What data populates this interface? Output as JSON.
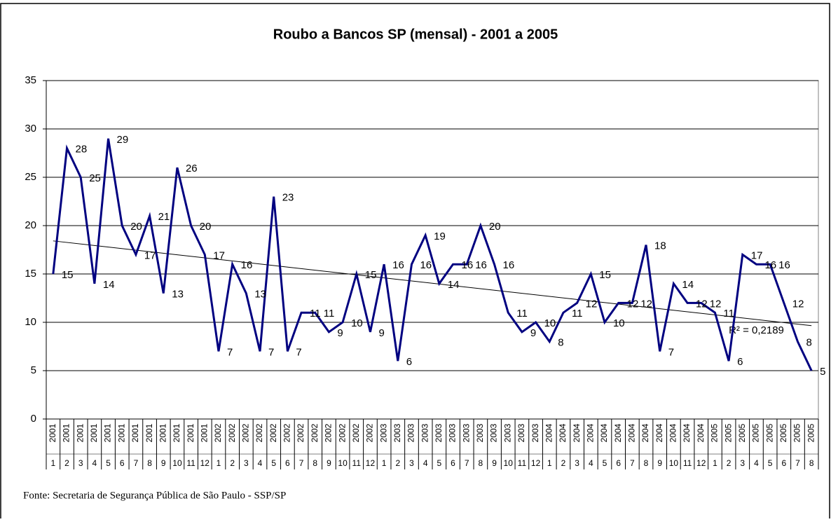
{
  "chart_data": {
    "type": "line",
    "title": "Roubo a Bancos SP (mensal) - 2001 a 2005",
    "source": "Fonte: Secretaria de Segurança Pública de São Paulo - SSP/SP",
    "categories": [
      [
        "2001",
        "1"
      ],
      [
        "2001",
        "2"
      ],
      [
        "2001",
        "3"
      ],
      [
        "2001",
        "4"
      ],
      [
        "2001",
        "5"
      ],
      [
        "2001",
        "6"
      ],
      [
        "2001",
        "7"
      ],
      [
        "2001",
        "8"
      ],
      [
        "2001",
        "9"
      ],
      [
        "2001",
        "10"
      ],
      [
        "2001",
        "11"
      ],
      [
        "2001",
        "12"
      ],
      [
        "2002",
        "1"
      ],
      [
        "2002",
        "2"
      ],
      [
        "2002",
        "3"
      ],
      [
        "2002",
        "4"
      ],
      [
        "2002",
        "5"
      ],
      [
        "2002",
        "6"
      ],
      [
        "2002",
        "7"
      ],
      [
        "2002",
        "8"
      ],
      [
        "2002",
        "9"
      ],
      [
        "2002",
        "10"
      ],
      [
        "2002",
        "11"
      ],
      [
        "2002",
        "12"
      ],
      [
        "2003",
        "1"
      ],
      [
        "2003",
        "2"
      ],
      [
        "2003",
        "3"
      ],
      [
        "2003",
        "4"
      ],
      [
        "2003",
        "5"
      ],
      [
        "2003",
        "6"
      ],
      [
        "2003",
        "7"
      ],
      [
        "2003",
        "8"
      ],
      [
        "2003",
        "9"
      ],
      [
        "2003",
        "10"
      ],
      [
        "2003",
        "11"
      ],
      [
        "2003",
        "12"
      ],
      [
        "2004",
        "1"
      ],
      [
        "2004",
        "2"
      ],
      [
        "2004",
        "3"
      ],
      [
        "2004",
        "4"
      ],
      [
        "2004",
        "5"
      ],
      [
        "2004",
        "6"
      ],
      [
        "2004",
        "7"
      ],
      [
        "2004",
        "8"
      ],
      [
        "2004",
        "9"
      ],
      [
        "2004",
        "10"
      ],
      [
        "2004",
        "11"
      ],
      [
        "2004",
        "12"
      ],
      [
        "2005",
        "1"
      ],
      [
        "2005",
        "2"
      ],
      [
        "2005",
        "3"
      ],
      [
        "2005",
        "4"
      ],
      [
        "2005",
        "5"
      ],
      [
        "2005",
        "6"
      ],
      [
        "2005",
        "7"
      ],
      [
        "2005",
        "8"
      ]
    ],
    "values": [
      15,
      28,
      25,
      14,
      29,
      20,
      17,
      21,
      13,
      26,
      20,
      17,
      7,
      16,
      13,
      7,
      23,
      7,
      11,
      11,
      9,
      10,
      15,
      9,
      16,
      6,
      16,
      19,
      14,
      16,
      16,
      20,
      16,
      11,
      9,
      10,
      8,
      11,
      12,
      15,
      10,
      12,
      12,
      18,
      7,
      14,
      12,
      12,
      11,
      6,
      17,
      16,
      16,
      12,
      8,
      5
    ],
    "color": "#000080",
    "trendline": true,
    "trendline_label": "R² = 0,2189",
    "ylim": [
      0,
      35
    ],
    "yticks": [
      0,
      5,
      10,
      15,
      20,
      25,
      30,
      35
    ],
    "grid": true
  }
}
